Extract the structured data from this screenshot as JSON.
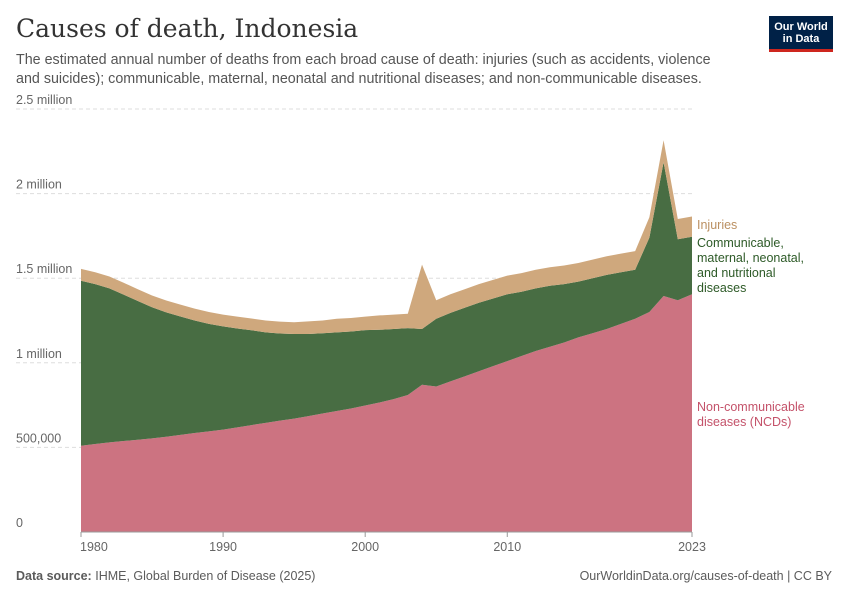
{
  "header": {
    "title": "Causes of death, Indonesia",
    "subtitle": "The estimated annual number of deaths from each broad cause of death: injuries (such as accidents, violence and suicides); communicable, maternal, neonatal and nutritional diseases; and non-communicable diseases."
  },
  "logo": {
    "line1": "Our World",
    "line2": "in Data"
  },
  "footer": {
    "source_label": "Data source:",
    "source_text": "IHME, Global Burden of Disease (2025)",
    "url_text": "OurWorldinData.org/causes-of-death | CC BY"
  },
  "chart_data": {
    "type": "area",
    "stacked": true,
    "title": "Causes of death, Indonesia",
    "x": [
      1980,
      1981,
      1982,
      1983,
      1984,
      1985,
      1986,
      1987,
      1988,
      1989,
      1990,
      1991,
      1992,
      1993,
      1994,
      1995,
      1996,
      1997,
      1998,
      1999,
      2000,
      2001,
      2002,
      2003,
      2004,
      2005,
      2006,
      2007,
      2008,
      2009,
      2010,
      2011,
      2012,
      2013,
      2014,
      2015,
      2016,
      2017,
      2018,
      2019,
      2020,
      2021,
      2022,
      2023
    ],
    "xlim": [
      1980,
      2023
    ],
    "x_ticks": [
      1980,
      1990,
      2000,
      2010,
      2023
    ],
    "ylim": [
      0,
      2500000
    ],
    "y_ticks": [
      0,
      500000,
      1000000,
      1500000,
      2000000,
      2500000
    ],
    "y_tick_labels": [
      "0",
      "500,000",
      "1 million",
      "1.5 million",
      "2 million",
      "2.5 million"
    ],
    "grid": true,
    "series": [
      {
        "name": "Non-communicable diseases (NCDs)",
        "label_lines": [
          "Non-communicable",
          "diseases (NCDs)"
        ],
        "color": "#cc7381",
        "label_color": "#c4526a",
        "values": [
          510000,
          520000,
          530000,
          538000,
          545000,
          553000,
          563000,
          574000,
          585000,
          595000,
          605000,
          618000,
          632000,
          645000,
          658000,
          670000,
          685000,
          700000,
          715000,
          730000,
          748000,
          765000,
          785000,
          810000,
          870000,
          860000,
          890000,
          920000,
          950000,
          980000,
          1010000,
          1040000,
          1070000,
          1095000,
          1120000,
          1150000,
          1175000,
          1200000,
          1230000,
          1260000,
          1300000,
          1395000,
          1370000,
          1405000
        ]
      },
      {
        "name": "Communicable, maternal, neonatal, and nutritional diseases",
        "label_lines": [
          "Communicable,",
          "maternal, neonatal,",
          "and nutritional",
          "diseases"
        ],
        "color": "#486d43",
        "label_color": "#2d5a27",
        "values": [
          975000,
          945000,
          910000,
          865000,
          820000,
          775000,
          735000,
          700000,
          665000,
          635000,
          610000,
          585000,
          560000,
          535000,
          515000,
          500000,
          485000,
          475000,
          465000,
          455000,
          445000,
          430000,
          415000,
          395000,
          330000,
          400000,
          405000,
          405000,
          405000,
          400000,
          395000,
          380000,
          370000,
          360000,
          345000,
          330000,
          325000,
          320000,
          305000,
          290000,
          440000,
          790000,
          360000,
          340000
        ]
      },
      {
        "name": "Injuries",
        "label_lines": [
          "Injuries"
        ],
        "color": "#cfa87d",
        "label_color": "#bb9062",
        "values": [
          70000,
          70000,
          70000,
          70000,
          70000,
          70000,
          70000,
          70000,
          70000,
          70000,
          70000,
          70000,
          70000,
          70000,
          70000,
          70000,
          75000,
          75000,
          80000,
          80000,
          80000,
          85000,
          85000,
          85000,
          380000,
          110000,
          110000,
          110000,
          110000,
          110000,
          110000,
          110000,
          110000,
          110000,
          110000,
          110000,
          110000,
          110000,
          110000,
          110000,
          120000,
          130000,
          120000,
          120000
        ]
      }
    ]
  }
}
